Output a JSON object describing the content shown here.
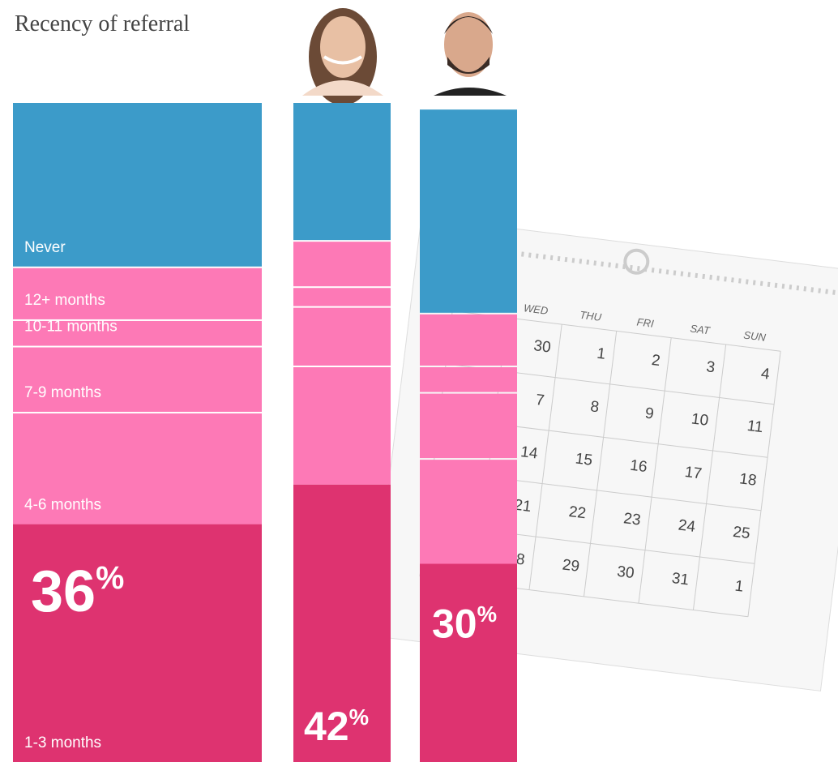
{
  "chart_data": {
    "type": "bar",
    "stacked": true,
    "title": "Recency of referral",
    "categories": [
      null,
      null,
      null
    ],
    "ylim": [
      0,
      100
    ],
    "series": [
      {
        "name": "1-3 months",
        "color": "#de3370",
        "values": [
          36,
          42,
          30
        ],
        "value_labels": [
          "36%",
          "42%",
          "30%"
        ]
      },
      {
        "name": "4-6 months",
        "color": "#fd79b6",
        "values": [
          17,
          18,
          16
        ]
      },
      {
        "name": "7-9 months",
        "color": "#fd79b6",
        "values": [
          10,
          9,
          10
        ]
      },
      {
        "name": "10-11 months",
        "color": "#fd79b6",
        "values": [
          4,
          3,
          4
        ]
      },
      {
        "name": "12+ months",
        "color": "#fd79b6",
        "values": [
          8,
          7,
          8
        ]
      },
      {
        "name": "Never",
        "color": "#3c9bc9",
        "values": [
          25,
          21,
          31
        ]
      }
    ]
  },
  "calendar": {
    "headers": [
      "WED",
      "THU",
      "FRI",
      "SAT",
      "SUN"
    ],
    "days": [
      [
        "30",
        "1",
        "2",
        "3",
        "4"
      ],
      [
        "7",
        "8",
        "9",
        "10",
        "11"
      ],
      [
        "14",
        "15",
        "16",
        "17",
        "18"
      ],
      [
        "21",
        "22",
        "23",
        "24",
        "25"
      ],
      [
        "28",
        "29",
        "30",
        "31",
        "1"
      ]
    ]
  }
}
